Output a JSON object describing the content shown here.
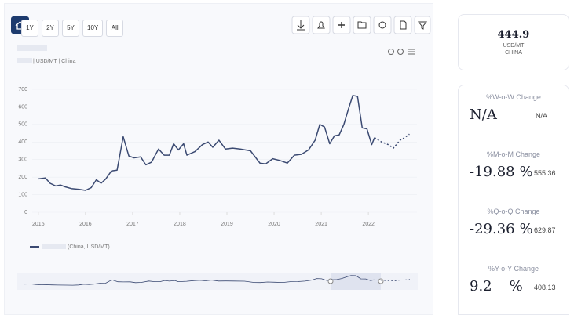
{
  "toolbar": {
    "range_buttons": [
      "1Y",
      "2Y",
      "5Y",
      "10Y",
      "All"
    ]
  },
  "chart_data": {
    "type": "line",
    "subtitle": "| USD/MT | China",
    "xlim": [
      2014.87,
      2023.03
    ],
    "xticks": [
      2015,
      2016,
      2017,
      2018,
      2019,
      2020,
      2021,
      2022
    ],
    "ylim": [
      0,
      700
    ],
    "yticks": [
      0,
      100,
      200,
      300,
      400,
      500,
      600,
      700
    ],
    "series": [
      {
        "name": "(China, USD/MT)",
        "color": "#3b4a72",
        "style": "solid",
        "x": [
          2015.0,
          2015.15,
          2015.25,
          2015.37,
          2015.47,
          2015.57,
          2015.7,
          2015.87,
          2016.0,
          2016.12,
          2016.23,
          2016.33,
          2016.43,
          2016.55,
          2016.67,
          2016.8,
          2016.92,
          2017.03,
          2017.17,
          2017.28,
          2017.4,
          2017.55,
          2017.67,
          2017.78,
          2017.87,
          2017.97,
          2018.08,
          2018.15,
          2018.32,
          2018.48,
          2018.6,
          2018.7,
          2018.83,
          2018.97,
          2019.12,
          2019.28,
          2019.5,
          2019.7,
          2019.82,
          2019.97,
          2020.12,
          2020.28,
          2020.43,
          2020.58,
          2020.73,
          2020.87,
          2020.97,
          2021.07,
          2021.18,
          2021.28,
          2021.38,
          2021.48,
          2021.58,
          2021.67,
          2021.77,
          2021.87,
          2021.97,
          2022.07,
          2022.13
        ],
        "values": [
          190,
          195,
          165,
          150,
          155,
          145,
          135,
          130,
          125,
          140,
          185,
          165,
          190,
          235,
          240,
          430,
          320,
          310,
          315,
          270,
          285,
          360,
          325,
          325,
          390,
          355,
          390,
          325,
          345,
          385,
          400,
          370,
          410,
          360,
          365,
          360,
          350,
          280,
          275,
          305,
          295,
          280,
          325,
          330,
          355,
          410,
          500,
          485,
          390,
          435,
          440,
          500,
          590,
          665,
          660,
          480,
          475,
          385,
          425
        ]
      },
      {
        "color": "#3b4a72",
        "style": "dotted",
        "x": [
          2022.13,
          2022.28,
          2022.42,
          2022.53,
          2022.67,
          2022.77,
          2022.87
        ],
        "values": [
          425,
          400,
          385,
          365,
          410,
          425,
          445
        ]
      }
    ]
  },
  "stats": {
    "price": {
      "value": 444.9,
      "unit": "USD/MT",
      "region": "CHINA"
    },
    "changes": [
      {
        "label": "%W-o-W Change",
        "value": "N/A",
        "reference": "N/A"
      },
      {
        "label": "%M-o-M Change",
        "value": -19.88,
        "unit": "%",
        "reference": 555.36
      },
      {
        "label": "%Q-o-Q Change",
        "value": -29.36,
        "unit": "%",
        "reference": 629.87
      },
      {
        "label": "%Y-o-Y Change",
        "value": 9.2,
        "unit": "%",
        "reference": 408.13
      }
    ]
  }
}
